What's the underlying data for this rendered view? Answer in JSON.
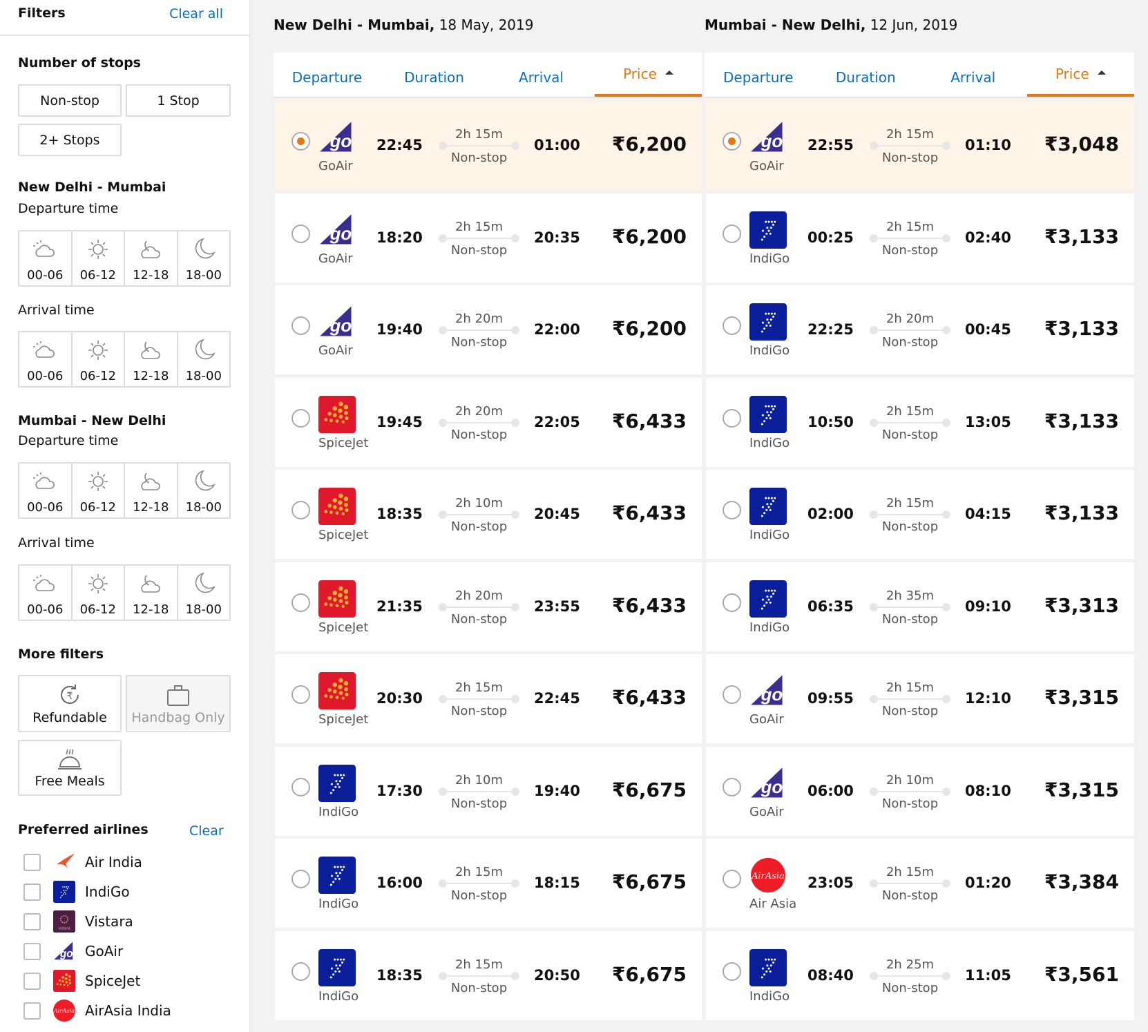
{
  "sidebar": {
    "title": "Filters",
    "clear_all": "Clear all",
    "stops_title": "Number of stops",
    "stops": [
      "Non-stop",
      "1 Stop",
      "2+ Stops"
    ],
    "route1": "New Delhi - Mumbai",
    "route2": "Mumbai - New Delhi",
    "departure_time": "Departure time",
    "arrival_time": "Arrival time",
    "time_slots": [
      {
        "label": "00-06",
        "icon": "cloud-sun-icon"
      },
      {
        "label": "06-12",
        "icon": "sun-icon"
      },
      {
        "label": "12-18",
        "icon": "cloud-moon-icon"
      },
      {
        "label": "18-00",
        "icon": "moon-icon"
      }
    ],
    "more_filters": "More filters",
    "more": [
      {
        "label": "Refundable",
        "icon": "refund-icon",
        "disabled": false
      },
      {
        "label": "Handbag Only",
        "icon": "handbag-icon",
        "disabled": true
      },
      {
        "label": "Free Meals",
        "icon": "meal-icon",
        "disabled": false
      }
    ],
    "preferred": "Preferred airlines",
    "clear": "Clear",
    "airlines": [
      {
        "name": "Air India",
        "logo": "airindia"
      },
      {
        "name": "IndiGo",
        "logo": "indigo"
      },
      {
        "name": "Vistara",
        "logo": "vistara"
      },
      {
        "name": "GoAir",
        "logo": "goair"
      },
      {
        "name": "SpiceJet",
        "logo": "spicejet"
      },
      {
        "name": "AirAsia India",
        "logo": "airasia"
      }
    ]
  },
  "colors": {
    "accent": "#e47911",
    "link": "#0a6dc2",
    "selected_bg": "#fff4e8"
  },
  "columns": [
    {
      "route": "New Delhi - Mumbai,",
      "date": "18 May, 2019",
      "tabs": [
        "Departure",
        "Duration",
        "Arrival",
        "Price"
      ],
      "active_tab": 3,
      "flights": [
        {
          "airline": "GoAir",
          "logo": "goair",
          "dep": "22:45",
          "dur": "2h 15m",
          "stops": "Non-stop",
          "arr": "01:00",
          "price": "₹6,200",
          "selected": true
        },
        {
          "airline": "GoAir",
          "logo": "goair",
          "dep": "18:20",
          "dur": "2h 15m",
          "stops": "Non-stop",
          "arr": "20:35",
          "price": "₹6,200"
        },
        {
          "airline": "GoAir",
          "logo": "goair",
          "dep": "19:40",
          "dur": "2h 20m",
          "stops": "Non-stop",
          "arr": "22:00",
          "price": "₹6,200"
        },
        {
          "airline": "SpiceJet",
          "logo": "spicejet",
          "dep": "19:45",
          "dur": "2h 20m",
          "stops": "Non-stop",
          "arr": "22:05",
          "price": "₹6,433"
        },
        {
          "airline": "SpiceJet",
          "logo": "spicejet",
          "dep": "18:35",
          "dur": "2h 10m",
          "stops": "Non-stop",
          "arr": "20:45",
          "price": "₹6,433"
        },
        {
          "airline": "SpiceJet",
          "logo": "spicejet",
          "dep": "21:35",
          "dur": "2h 20m",
          "stops": "Non-stop",
          "arr": "23:55",
          "price": "₹6,433"
        },
        {
          "airline": "SpiceJet",
          "logo": "spicejet",
          "dep": "20:30",
          "dur": "2h 15m",
          "stops": "Non-stop",
          "arr": "22:45",
          "price": "₹6,433"
        },
        {
          "airline": "IndiGo",
          "logo": "indigo",
          "dep": "17:30",
          "dur": "2h 10m",
          "stops": "Non-stop",
          "arr": "19:40",
          "price": "₹6,675"
        },
        {
          "airline": "IndiGo",
          "logo": "indigo",
          "dep": "16:00",
          "dur": "2h 15m",
          "stops": "Non-stop",
          "arr": "18:15",
          "price": "₹6,675"
        },
        {
          "airline": "IndiGo",
          "logo": "indigo",
          "dep": "18:35",
          "dur": "2h 15m",
          "stops": "Non-stop",
          "arr": "20:50",
          "price": "₹6,675"
        }
      ]
    },
    {
      "route": "Mumbai - New Delhi,",
      "date": "12 Jun, 2019",
      "tabs": [
        "Departure",
        "Duration",
        "Arrival",
        "Price"
      ],
      "active_tab": 3,
      "flights": [
        {
          "airline": "GoAir",
          "logo": "goair",
          "dep": "22:55",
          "dur": "2h 15m",
          "stops": "Non-stop",
          "arr": "01:10",
          "price": "₹3,048",
          "selected": true
        },
        {
          "airline": "IndiGo",
          "logo": "indigo",
          "dep": "00:25",
          "dur": "2h 15m",
          "stops": "Non-stop",
          "arr": "02:40",
          "price": "₹3,133"
        },
        {
          "airline": "IndiGo",
          "logo": "indigo",
          "dep": "22:25",
          "dur": "2h 20m",
          "stops": "Non-stop",
          "arr": "00:45",
          "price": "₹3,133"
        },
        {
          "airline": "IndiGo",
          "logo": "indigo",
          "dep": "10:50",
          "dur": "2h 15m",
          "stops": "Non-stop",
          "arr": "13:05",
          "price": "₹3,133"
        },
        {
          "airline": "IndiGo",
          "logo": "indigo",
          "dep": "02:00",
          "dur": "2h 15m",
          "stops": "Non-stop",
          "arr": "04:15",
          "price": "₹3,133"
        },
        {
          "airline": "IndiGo",
          "logo": "indigo",
          "dep": "06:35",
          "dur": "2h 35m",
          "stops": "Non-stop",
          "arr": "09:10",
          "price": "₹3,313"
        },
        {
          "airline": "GoAir",
          "logo": "goair",
          "dep": "09:55",
          "dur": "2h 15m",
          "stops": "Non-stop",
          "arr": "12:10",
          "price": "₹3,315"
        },
        {
          "airline": "GoAir",
          "logo": "goair",
          "dep": "06:00",
          "dur": "2h 10m",
          "stops": "Non-stop",
          "arr": "08:10",
          "price": "₹3,315"
        },
        {
          "airline": "Air Asia",
          "logo": "airasia",
          "dep": "23:05",
          "dur": "2h 15m",
          "stops": "Non-stop",
          "arr": "01:20",
          "price": "₹3,384"
        },
        {
          "airline": "IndiGo",
          "logo": "indigo",
          "dep": "08:40",
          "dur": "2h 25m",
          "stops": "Non-stop",
          "arr": "11:05",
          "price": "₹3,561"
        }
      ]
    }
  ]
}
